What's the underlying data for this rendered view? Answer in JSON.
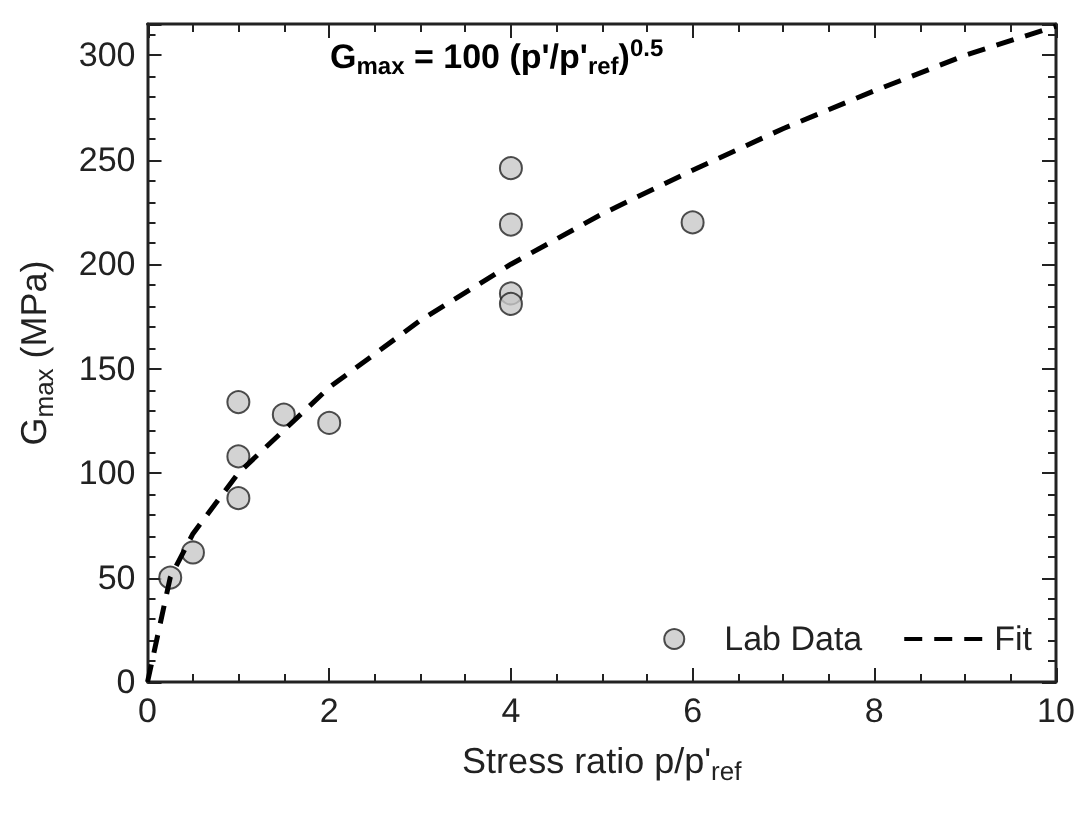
{
  "chart_data": {
    "type": "scatter",
    "xlabel": "Stress ratio p/p'$_{ref}$",
    "ylabel": "G$_{max}$ (MPa)",
    "annotations": [
      "G$_{max}$ = 100 (p'/p'$_{ref}$)$^{0.5}$"
    ],
    "xlim": [
      0,
      10
    ],
    "xticks": [
      0,
      2,
      4,
      6,
      8,
      10
    ],
    "ylim": [
      0,
      315
    ],
    "yticks": [
      0,
      50,
      100,
      150,
      200,
      250,
      300
    ],
    "grid": false,
    "legend": "bottom right",
    "series": [
      {
        "name": "Lab Data",
        "marker": "circle",
        "color": "#c8c8c8",
        "x": [
          0.25,
          0.5,
          1,
          1,
          1,
          1.5,
          2,
          4,
          4,
          4,
          4,
          6
        ],
        "values": [
          50,
          62,
          88,
          108,
          134,
          128,
          124,
          246,
          219,
          186,
          181,
          220
        ]
      },
      {
        "name": "Fit",
        "type": "line",
        "marker": "none",
        "line_style": "dashed",
        "color": "#000000",
        "x": [
          0,
          0.25,
          0.5,
          1,
          2,
          3,
          4,
          5,
          6,
          7,
          8,
          9,
          10
        ],
        "values": [
          0,
          50,
          71,
          100,
          141,
          173,
          200,
          224,
          245,
          265,
          283,
          300,
          314
        ]
      }
    ]
  }
}
